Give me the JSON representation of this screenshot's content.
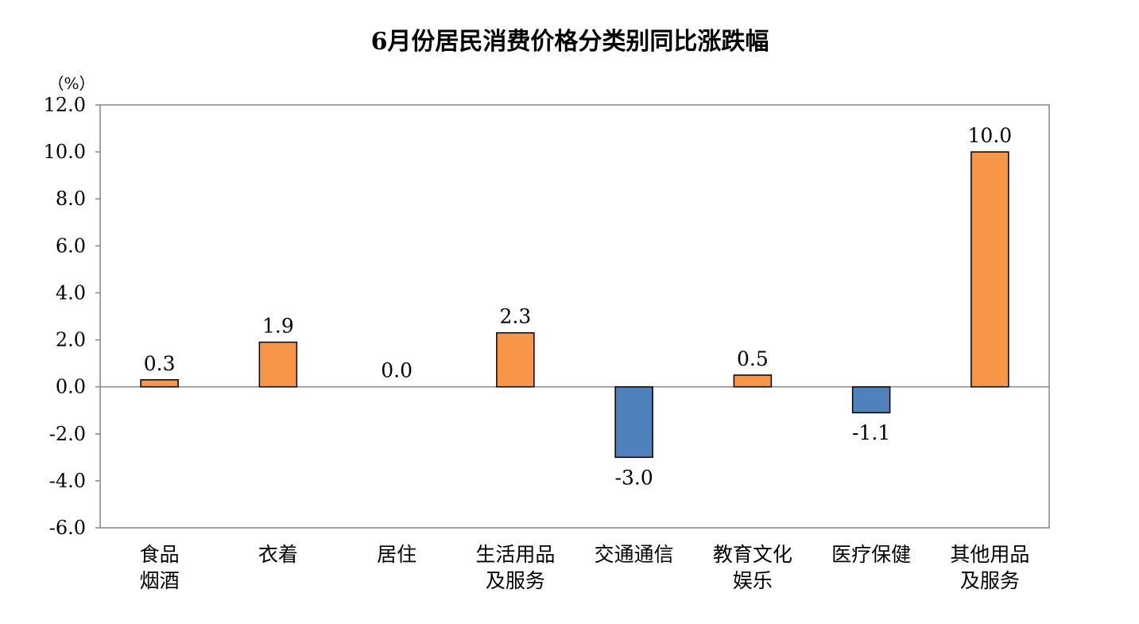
{
  "chart_data": {
    "type": "bar",
    "title": "6月份居民消费价格分类别同比涨跌幅",
    "unit": "（%）",
    "categories": [
      [
        "食品",
        "烟酒"
      ],
      [
        "衣着"
      ],
      [
        "居住"
      ],
      [
        "生活用品",
        "及服务"
      ],
      [
        "交通通信"
      ],
      [
        "教育文化",
        "娱乐"
      ],
      [
        "医疗保健"
      ],
      [
        "其他用品",
        "及服务"
      ]
    ],
    "values": [
      0.3,
      1.9,
      0.0,
      2.3,
      -3.0,
      0.5,
      -1.1,
      10.0
    ],
    "data_labels": [
      "0.3",
      "1.9",
      "0.0",
      "2.3",
      "-3.0",
      "0.5",
      "-1.1",
      "10.0"
    ],
    "ylim": [
      -6,
      12
    ],
    "ytick_step": 2,
    "ytick_labels": [
      "12.0",
      "10.0",
      "8.0",
      "6.0",
      "4.0",
      "2.0",
      "0.0",
      "-2.0",
      "-4.0",
      "-6.0"
    ],
    "colors": {
      "positive": "#F79646",
      "negative": "#4F81BD",
      "axis": "#868686",
      "bar_border": "#000000"
    },
    "xlabel": "",
    "ylabel": "",
    "grid": false
  }
}
